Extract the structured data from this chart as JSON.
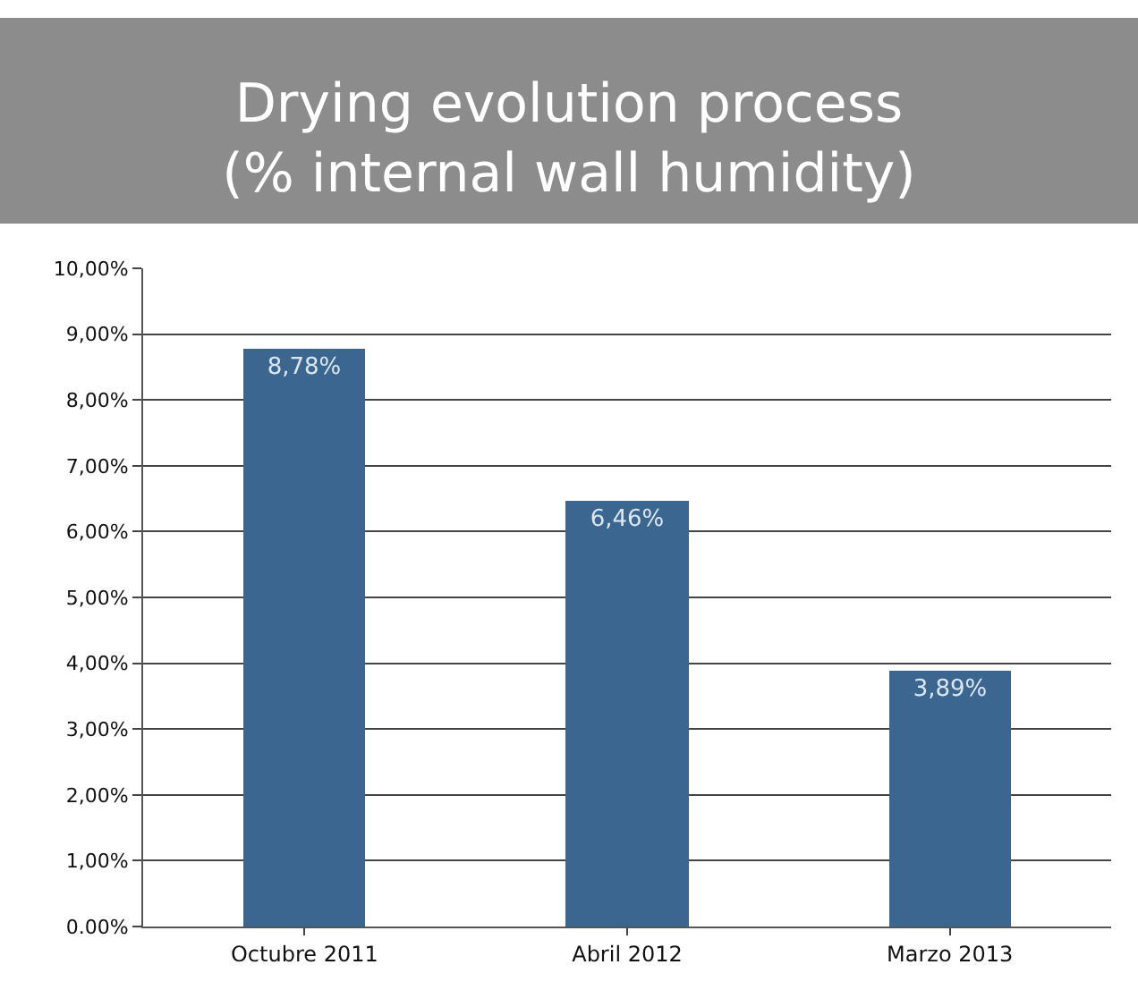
{
  "chart_data": {
    "type": "bar",
    "title": "Drying evolution process\n(% internal wall humidity)",
    "categories": [
      "Octubre 2011",
      "Abril 2012",
      "Marzo 2013"
    ],
    "values": [
      8.78,
      6.46,
      3.89
    ],
    "value_labels": [
      "8,78%",
      "6,46%",
      "3,89%"
    ],
    "color": "#3a6690",
    "ylim": [
      0,
      10
    ],
    "yticks": [
      {
        "value": 0,
        "label": "0.00%"
      },
      {
        "value": 1,
        "label": "1,00%"
      },
      {
        "value": 2,
        "label": "2,00%"
      },
      {
        "value": 3,
        "label": "3,00%"
      },
      {
        "value": 4,
        "label": "4,00%"
      },
      {
        "value": 5,
        "label": "5,00%"
      },
      {
        "value": 6,
        "label": "6,00%"
      },
      {
        "value": 7,
        "label": "7,00%"
      },
      {
        "value": 8,
        "label": "8,00%"
      },
      {
        "value": 9,
        "label": "9,00%"
      },
      {
        "value": 10,
        "label": "10,00%"
      }
    ],
    "grid": "y",
    "legend": false
  }
}
